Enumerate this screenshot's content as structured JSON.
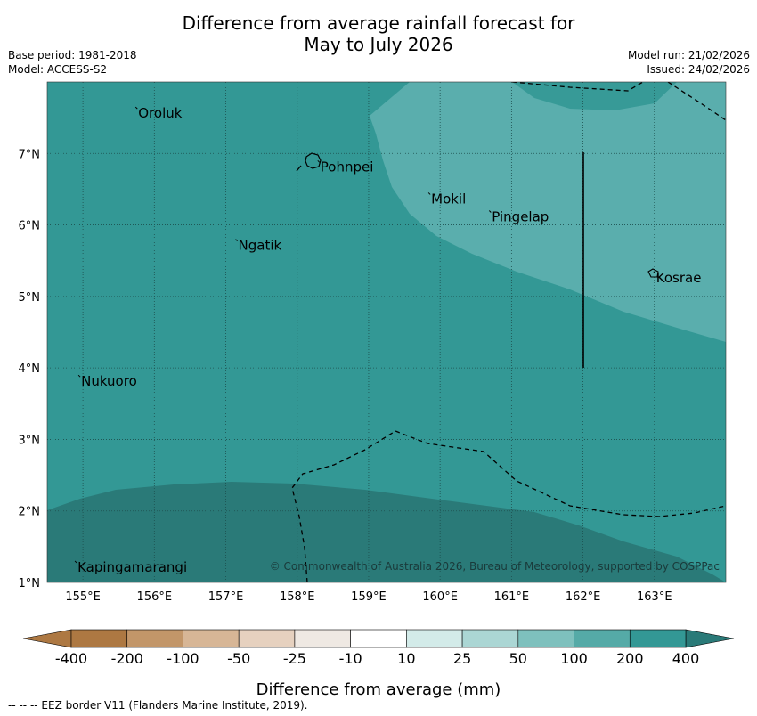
{
  "title": {
    "line1": "Difference from average rainfall forecast for",
    "line2": "May to July 2026"
  },
  "meta": {
    "base_period": "Base period: 1981-2018",
    "model": "Model: ACCESS-S2",
    "model_run": "Model run: 21/02/2026",
    "issued": "Issued: 24/02/2026"
  },
  "map": {
    "longitude_range": [
      154.5,
      164.0
    ],
    "latitude_range": [
      1.0,
      8.0
    ],
    "lon_ticks": [
      "155°E",
      "156°E",
      "157°E",
      "158°E",
      "159°E",
      "160°E",
      "161°E",
      "162°E",
      "163°E"
    ],
    "lat_ticks": [
      "1°N",
      "2°N",
      "3°N",
      "4°N",
      "5°N",
      "6°N",
      "7°N"
    ],
    "places": [
      {
        "name": "Oroluk",
        "lon": 155.75,
        "lat": 7.6
      },
      {
        "name": "Pohnpei",
        "lon": 158.3,
        "lat": 6.85
      },
      {
        "name": "Mokil",
        "lon": 159.85,
        "lat": 6.4
      },
      {
        "name": "Pingelap",
        "lon": 160.7,
        "lat": 6.15
      },
      {
        "name": "Ngatik",
        "lon": 157.15,
        "lat": 5.75
      },
      {
        "name": "Kosrae",
        "lon": 163.0,
        "lat": 5.3
      },
      {
        "name": "Nukuoro",
        "lon": 154.95,
        "lat": 3.85
      },
      {
        "name": "Kapingamarangi",
        "lon": 154.9,
        "lat": 1.25
      }
    ],
    "copyright": "© Commonwealth of Australia 2026, Bureau of Meteorology, supported by COSPPac"
  },
  "colorbar": {
    "ticks": [
      "-400",
      "-200",
      "-100",
      "-50",
      "-25",
      "-10",
      "10",
      "25",
      "50",
      "100",
      "200",
      "400"
    ],
    "colors": [
      "#ad7842",
      "#c29669",
      "#d7b696",
      "#e6d1bf",
      "#efe9e3",
      "#ffffff",
      "#d3ebe9",
      "#abd6d4",
      "#7ec0bd",
      "#55aaa7",
      "#339895",
      "#2a7a78"
    ],
    "label": "Difference from average (mm)"
  },
  "footnote": "--  --  -- EEZ border V11 (Flanders Marine Institute, 2019)."
}
